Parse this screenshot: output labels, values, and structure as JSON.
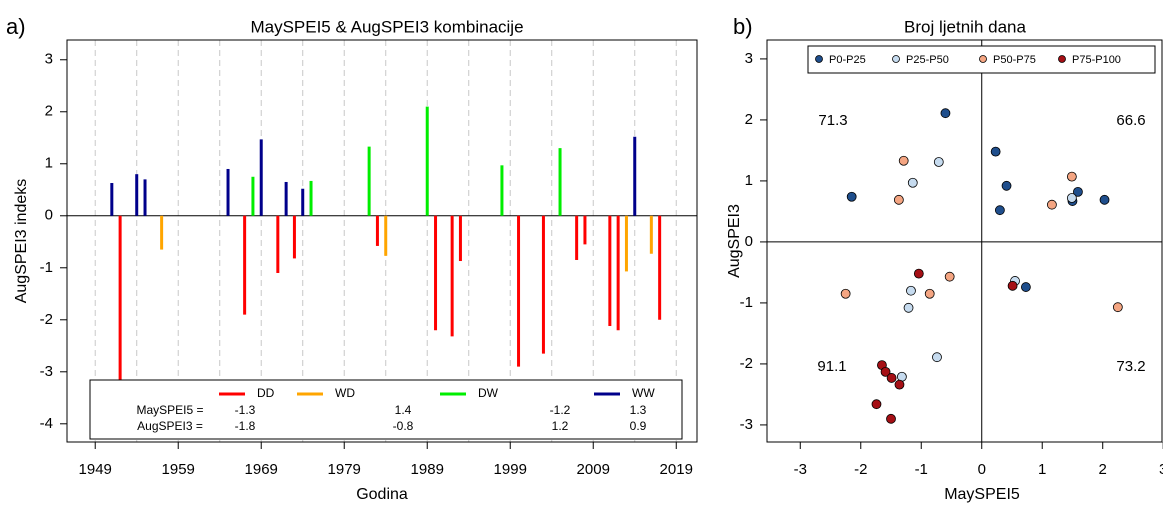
{
  "chart_data": [
    {
      "type": "spike",
      "panel": "a)",
      "title": "MaySPEI5 & AugSPEI3 kombinacije",
      "xlabel": "Godina",
      "ylabel": "AugSPEI3 indeks",
      "xlim": [
        1945.6,
        2021.5
      ],
      "ylim": [
        -4.35,
        3.38
      ],
      "xticks": [
        1949,
        1959,
        1969,
        1979,
        1989,
        1999,
        2009,
        2019
      ],
      "xgrid": [
        1949,
        1954,
        1959,
        1964,
        1969,
        1974,
        1979,
        1984,
        1989,
        1994,
        1999,
        2004,
        2009,
        2014,
        2019
      ],
      "yticks": [
        -4,
        -3,
        -2,
        -1,
        0,
        1,
        2,
        3
      ],
      "series": [
        {
          "name": "DD",
          "color": "#ff0000",
          "x": [
            1952,
            1967,
            1971,
            1973,
            1983,
            1990,
            1992,
            1993,
            2000,
            2003,
            2007,
            2008,
            2011,
            2012,
            2017
          ],
          "values": [
            -3.15,
            -1.9,
            -1.1,
            -0.82,
            -0.58,
            -2.2,
            -2.32,
            -0.87,
            -2.9,
            -2.65,
            -0.85,
            -0.55,
            -2.12,
            -2.2,
            -2.0
          ]
        },
        {
          "name": "WD",
          "color": "#ffa500",
          "x": [
            1957,
            1984,
            2013,
            2016
          ],
          "values": [
            -0.65,
            -0.77,
            -1.07,
            -0.73
          ]
        },
        {
          "name": "DW",
          "color": "#00ee00",
          "x": [
            1968,
            1975,
            1982,
            1989,
            1998,
            2005
          ],
          "values": [
            0.75,
            0.67,
            1.33,
            2.1,
            0.97,
            1.3
          ]
        },
        {
          "name": "WW",
          "color": "#00008b",
          "x": [
            1951,
            1954,
            1955,
            1965,
            1969,
            1972,
            1974,
            2014
          ],
          "values": [
            0.63,
            0.8,
            0.7,
            0.9,
            1.47,
            0.65,
            0.52,
            1.52
          ]
        }
      ],
      "legend_table": {
        "row_labels": [
          "MaySPEI5 =",
          "AugSPEI3 ="
        ],
        "values": [
          [
            -1.3,
            1.4,
            -1.2,
            1.3
          ],
          [
            -1.8,
            -0.8,
            1.2,
            0.9
          ]
        ]
      }
    },
    {
      "type": "scatter",
      "panel": "b)",
      "title": "Broj ljetnih dana",
      "xlabel": "MaySPEI5",
      "ylabel": "AugSPEI3",
      "xlim": [
        -3.55,
        2.98
      ],
      "ylim": [
        -3.28,
        3.31
      ],
      "xticks": [
        -3,
        -2,
        -1,
        0,
        1,
        2,
        3
      ],
      "yticks": [
        -3,
        -2,
        -1,
        0,
        1,
        2,
        3
      ],
      "hline": 0,
      "vline": 0,
      "quadrant_labels": [
        71.3,
        66.6,
        91.1,
        73.2
      ],
      "series": [
        {
          "name": "P0-P25",
          "color": "#1f4e8c",
          "x": [
            -2.15,
            -0.6,
            0.23,
            0.41,
            0.3,
            1.59,
            1.5,
            2.03,
            0.73
          ],
          "values": [
            0.74,
            2.11,
            1.48,
            0.92,
            0.52,
            0.82,
            0.67,
            0.69,
            -0.74
          ]
        },
        {
          "name": "P25-P50",
          "color": "#c6dbef",
          "x": [
            -0.71,
            -1.14,
            1.49,
            -1.17,
            -1.21,
            0.55,
            -0.74,
            -1.32
          ],
          "values": [
            1.31,
            0.97,
            0.72,
            -0.8,
            -1.08,
            -0.64,
            -1.89,
            -2.21
          ]
        },
        {
          "name": "P50-P75",
          "color": "#f4a582",
          "x": [
            -1.29,
            -1.37,
            1.49,
            1.16,
            -2.25,
            -0.86,
            -0.53,
            2.25
          ],
          "values": [
            1.33,
            0.69,
            1.07,
            0.61,
            -0.85,
            -0.85,
            -0.57,
            -1.07
          ]
        },
        {
          "name": "P75-P100",
          "color": "#a50f15",
          "x": [
            -1.04,
            0.51,
            -1.65,
            -1.59,
            -1.49,
            -1.36,
            -1.74,
            -1.5
          ],
          "values": [
            -0.52,
            -0.72,
            -2.02,
            -2.13,
            -2.23,
            -2.34,
            -2.66,
            -2.9
          ]
        }
      ]
    }
  ]
}
